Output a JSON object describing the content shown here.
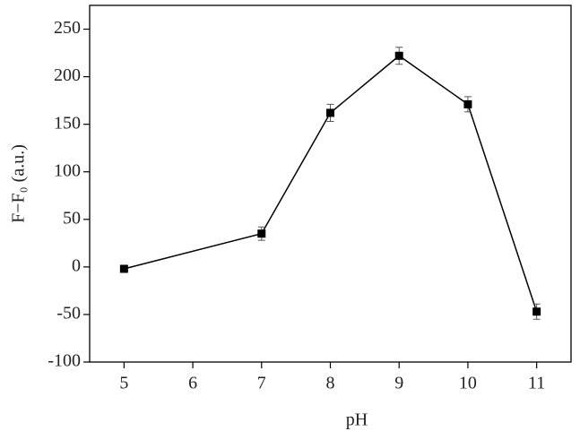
{
  "chart_data": {
    "type": "line",
    "xlabel": "pH",
    "ylabel": "F−F₀ (a.u.)",
    "x": [
      5,
      7,
      8,
      9,
      10,
      11
    ],
    "series": [
      {
        "color": "#000000",
        "values": [
          -2,
          35,
          162,
          222,
          171,
          -47
        ],
        "errors": [
          2,
          7,
          9,
          9,
          8,
          8
        ]
      }
    ],
    "xlim": [
      4.5,
      11.5
    ],
    "ylim": [
      -100,
      275
    ],
    "xticks": [
      5,
      6,
      7,
      8,
      9,
      10,
      11
    ],
    "yticks": [
      -100,
      -50,
      0,
      50,
      100,
      150,
      200,
      250
    ]
  }
}
